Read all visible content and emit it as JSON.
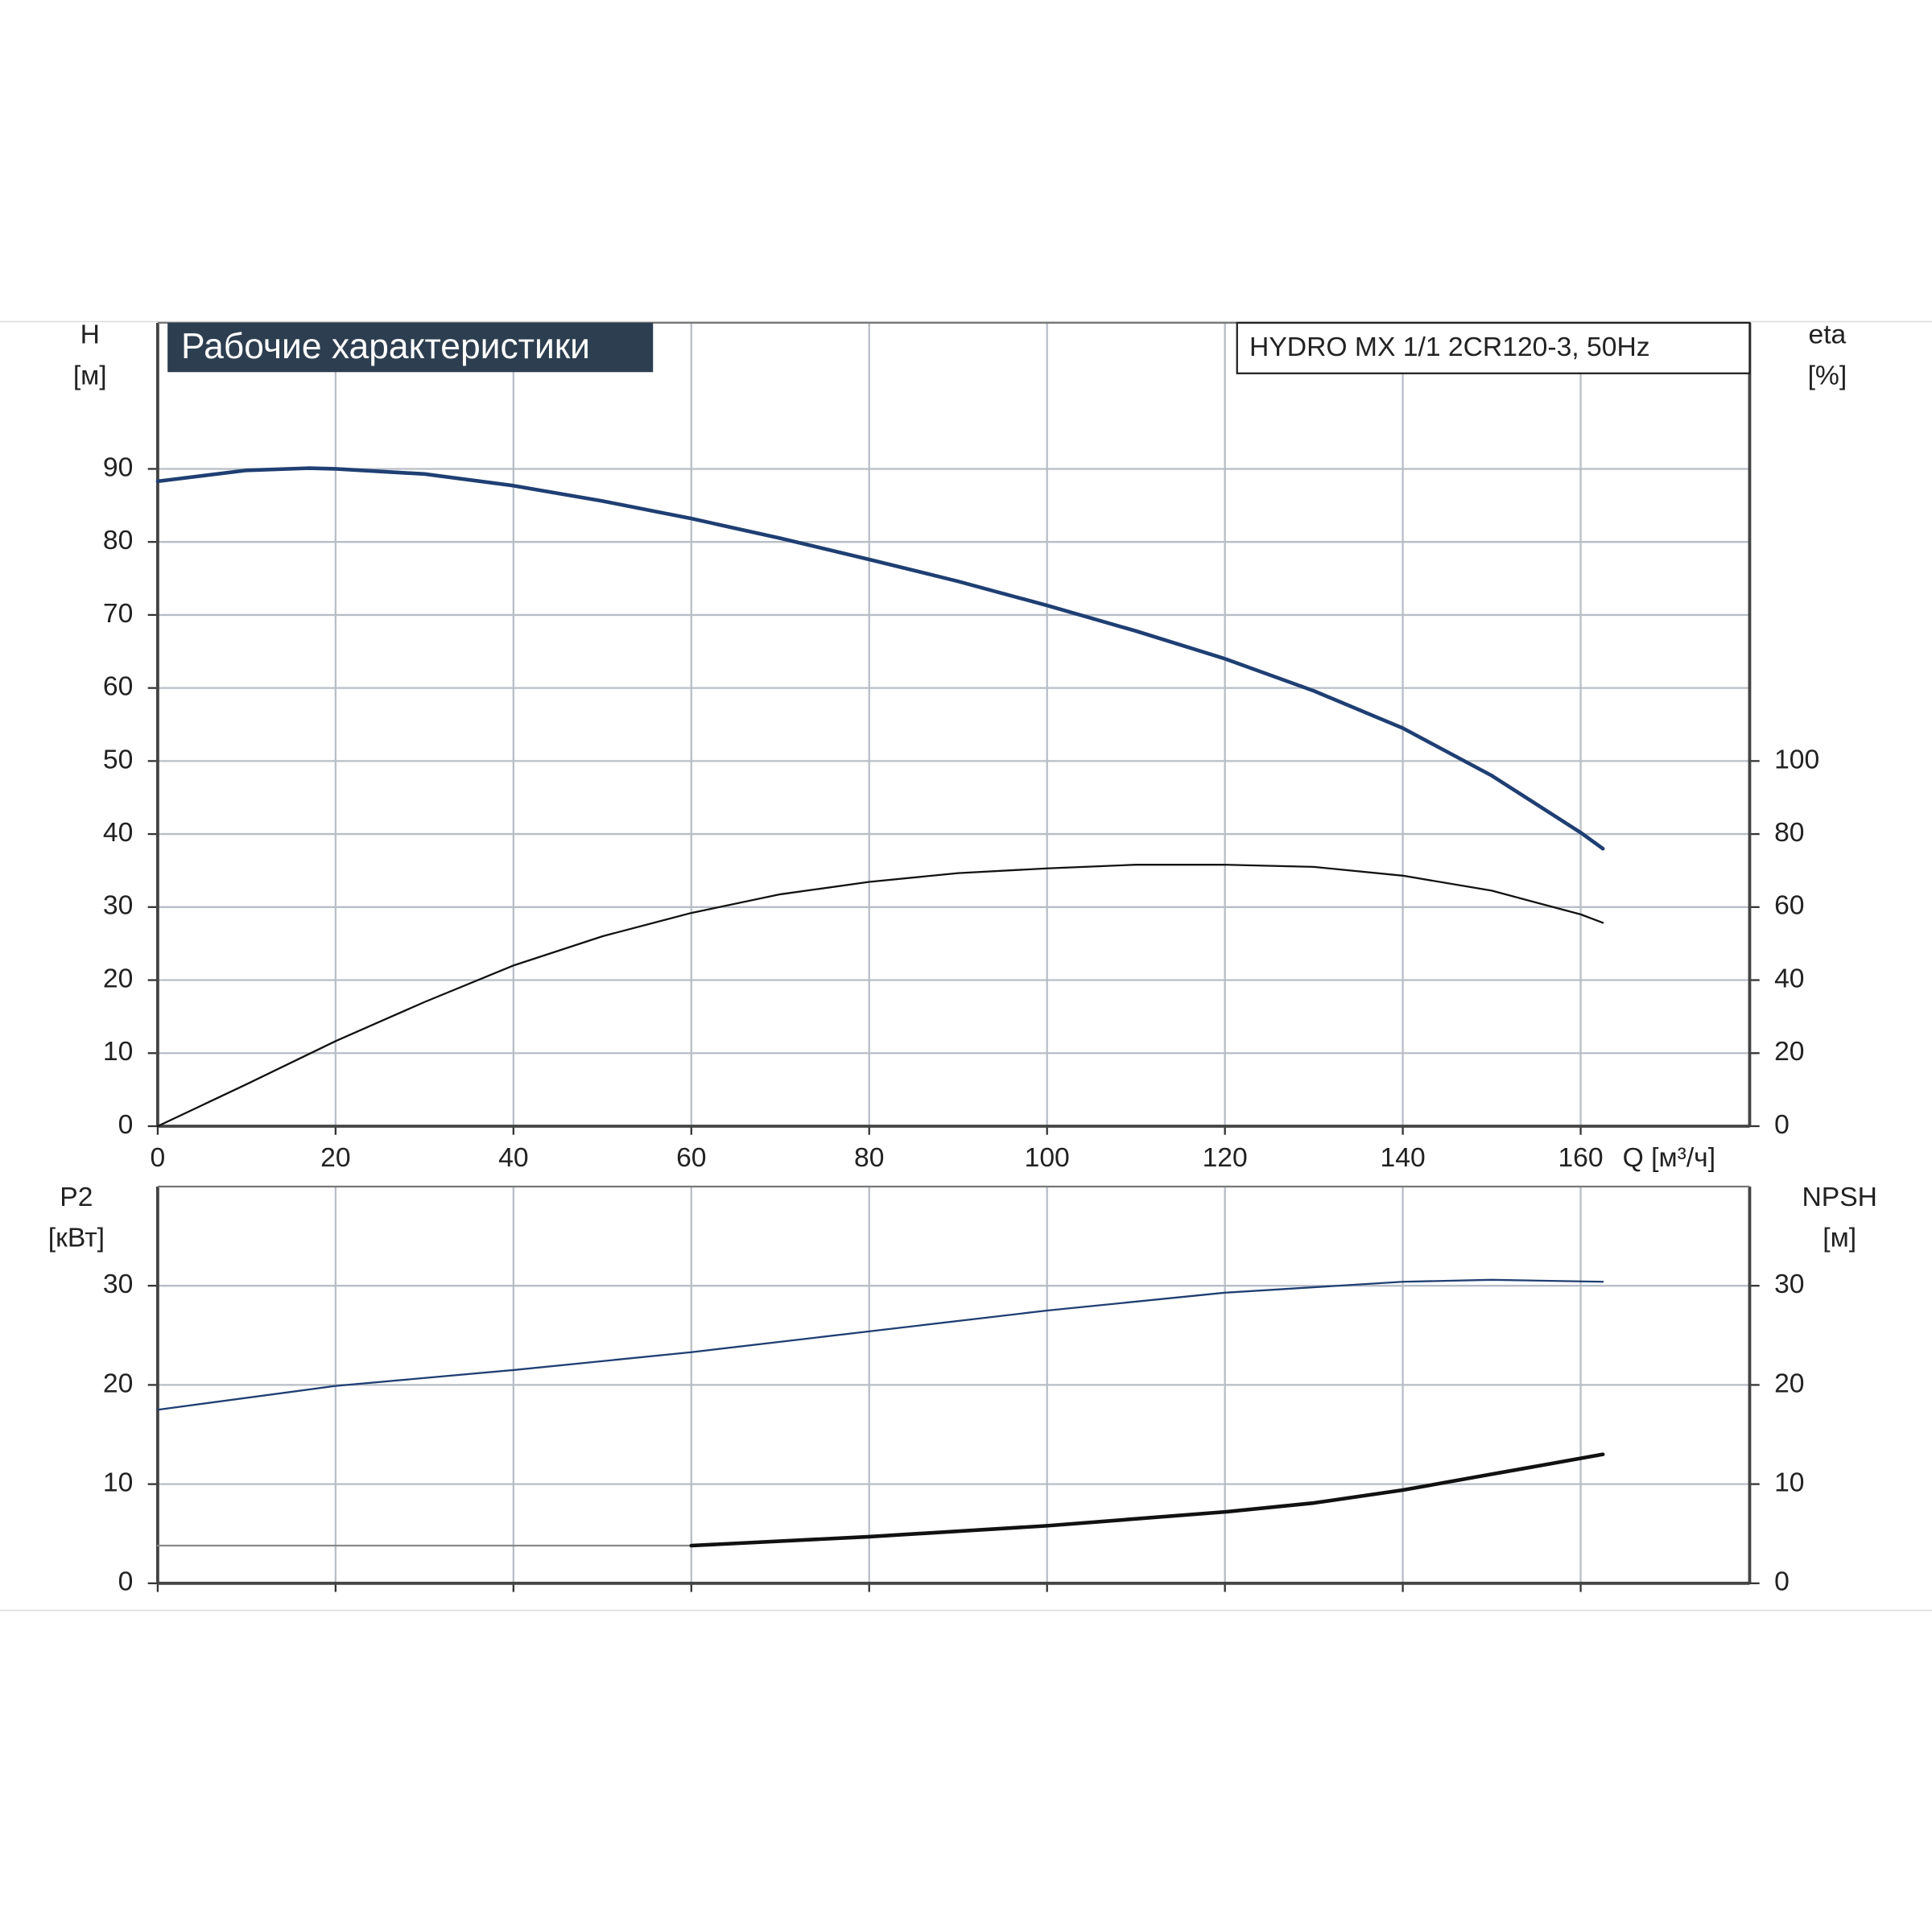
{
  "chart_data": [
    {
      "type": "line",
      "title": "Рабочие характеристики",
      "subtitle": "HYDRO MX 1/1 2CR120-3, 50Hz",
      "x_label": "Q [м³/ч]",
      "y_label": "H",
      "y_unit": "[м]",
      "y2_label": "eta",
      "y2_unit": "[%]",
      "xlim": [
        0,
        179
      ],
      "xticks": [
        0,
        20,
        40,
        60,
        80,
        100,
        120,
        140,
        160
      ],
      "xtick_labels": true,
      "ylim": [
        0,
        110
      ],
      "yticks": [
        0,
        10,
        20,
        30,
        40,
        50,
        60,
        70,
        80,
        90
      ],
      "y2lim": [
        0,
        220
      ],
      "y2ticks": [
        0,
        20,
        40,
        60,
        80,
        100
      ],
      "grid": true,
      "series": [
        {
          "color": "#1f3f73",
          "width": 3,
          "x": [
            0,
            10,
            17,
            20,
            30,
            40,
            50,
            60,
            70,
            80,
            90,
            100,
            110,
            120,
            130,
            140,
            150,
            160,
            162.5
          ],
          "values": [
            88.3,
            89.8,
            90.1,
            90,
            89.3,
            87.7,
            85.6,
            83.2,
            80.5,
            77.6,
            74.6,
            71.3,
            67.8,
            64,
            59.6,
            54.5,
            48,
            40.2,
            38
          ]
        },
        {
          "color": "#111111",
          "width": 1.5,
          "axis": "y2",
          "x": [
            0,
            10,
            20,
            30,
            40,
            50,
            60,
            70,
            80,
            90,
            100,
            110,
            120,
            130,
            140,
            150,
            160,
            162.5
          ],
          "values": [
            0,
            11.5,
            23.3,
            34,
            44,
            52,
            58.4,
            63.5,
            66.9,
            69.3,
            70.6,
            71.6,
            71.6,
            71,
            68.6,
            64.5,
            58,
            55.7
          ]
        }
      ]
    },
    {
      "type": "line",
      "y_label": "P2",
      "y_unit": "[кВт]",
      "y2_label": "NPSH",
      "y2_unit": "[м]",
      "xlim": [
        0,
        179
      ],
      "xticks": [
        0,
        20,
        40,
        60,
        80,
        100,
        120,
        140,
        160
      ],
      "xtick_labels": false,
      "ylim": [
        0,
        40
      ],
      "yticks": [
        0,
        10,
        20,
        30
      ],
      "y2lim": [
        0,
        40
      ],
      "y2ticks": [
        0,
        10,
        20,
        30
      ],
      "grid": true,
      "series": [
        {
          "color": "#1f3f73",
          "width": 1.5,
          "x": [
            0,
            20,
            40,
            60,
            80,
            100,
            120,
            140,
            150,
            162.5
          ],
          "values": [
            17.5,
            19.9,
            21.5,
            23.3,
            25.4,
            27.5,
            29.3,
            30.4,
            30.6,
            30.4
          ]
        },
        {
          "color": "#888888",
          "width": 1.5,
          "axis": "y2",
          "x": [
            0,
            60
          ],
          "values": [
            3.8,
            3.8
          ]
        },
        {
          "color": "#111111",
          "width": 3,
          "axis": "y2",
          "x": [
            60,
            80,
            100,
            120,
            130,
            140,
            150,
            162.5
          ],
          "values": [
            3.8,
            4.7,
            5.8,
            7.2,
            8.1,
            9.4,
            11,
            13
          ]
        }
      ]
    }
  ]
}
